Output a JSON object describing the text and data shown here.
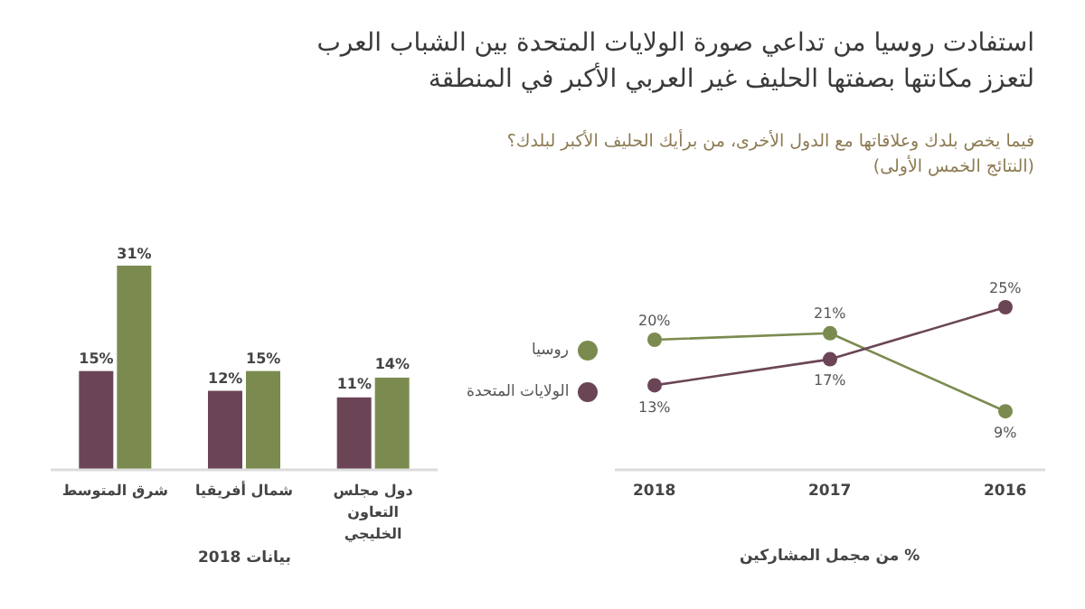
{
  "chart_data": [
    {
      "type": "line",
      "title": "استفادت روسيا من تداعي صورة الولايات المتحدة بين الشباب العرب لتعزز مكانتها بصفتها الحليف غير العربي الأكبر في المنطقة",
      "subtitle": "فيما يخص بلدك وعلاقاتها مع الدول الأخرى، من برأيك الحليف الأكبر لبلدك؟ (النتائج الخمس الأولى)",
      "xlabel": "% من مجمل المشاركين",
      "categories": [
        "2018",
        "2017",
        "2016"
      ],
      "legend": "left",
      "marker": "circle",
      "line_style": "solid",
      "series": [
        {
          "name": "روسيا",
          "color": "#7b8b4f",
          "values": [
            20,
            21,
            9
          ],
          "value_labels": [
            "20%",
            "21%",
            "9%"
          ]
        },
        {
          "name": "الولايات المتحدة",
          "color": "#6b4556",
          "values": [
            13,
            17,
            25
          ],
          "value_labels": [
            "13%",
            "17%",
            "25%"
          ]
        }
      ]
    },
    {
      "type": "bar",
      "xlabel": "بيانات 2018",
      "categories": [
        "شرق المتوسط",
        "شمال أفريقيا",
        "دول مجلس التعاون الخليجي"
      ],
      "series": [
        {
          "color": "#6b4556",
          "values": [
            15,
            12,
            11
          ],
          "value_labels": [
            "15%",
            "12%",
            "11%"
          ]
        },
        {
          "color": "#7b8b4f",
          "values": [
            31,
            15,
            14
          ],
          "value_labels": [
            "31%",
            "15%",
            "14%"
          ]
        }
      ]
    }
  ]
}
